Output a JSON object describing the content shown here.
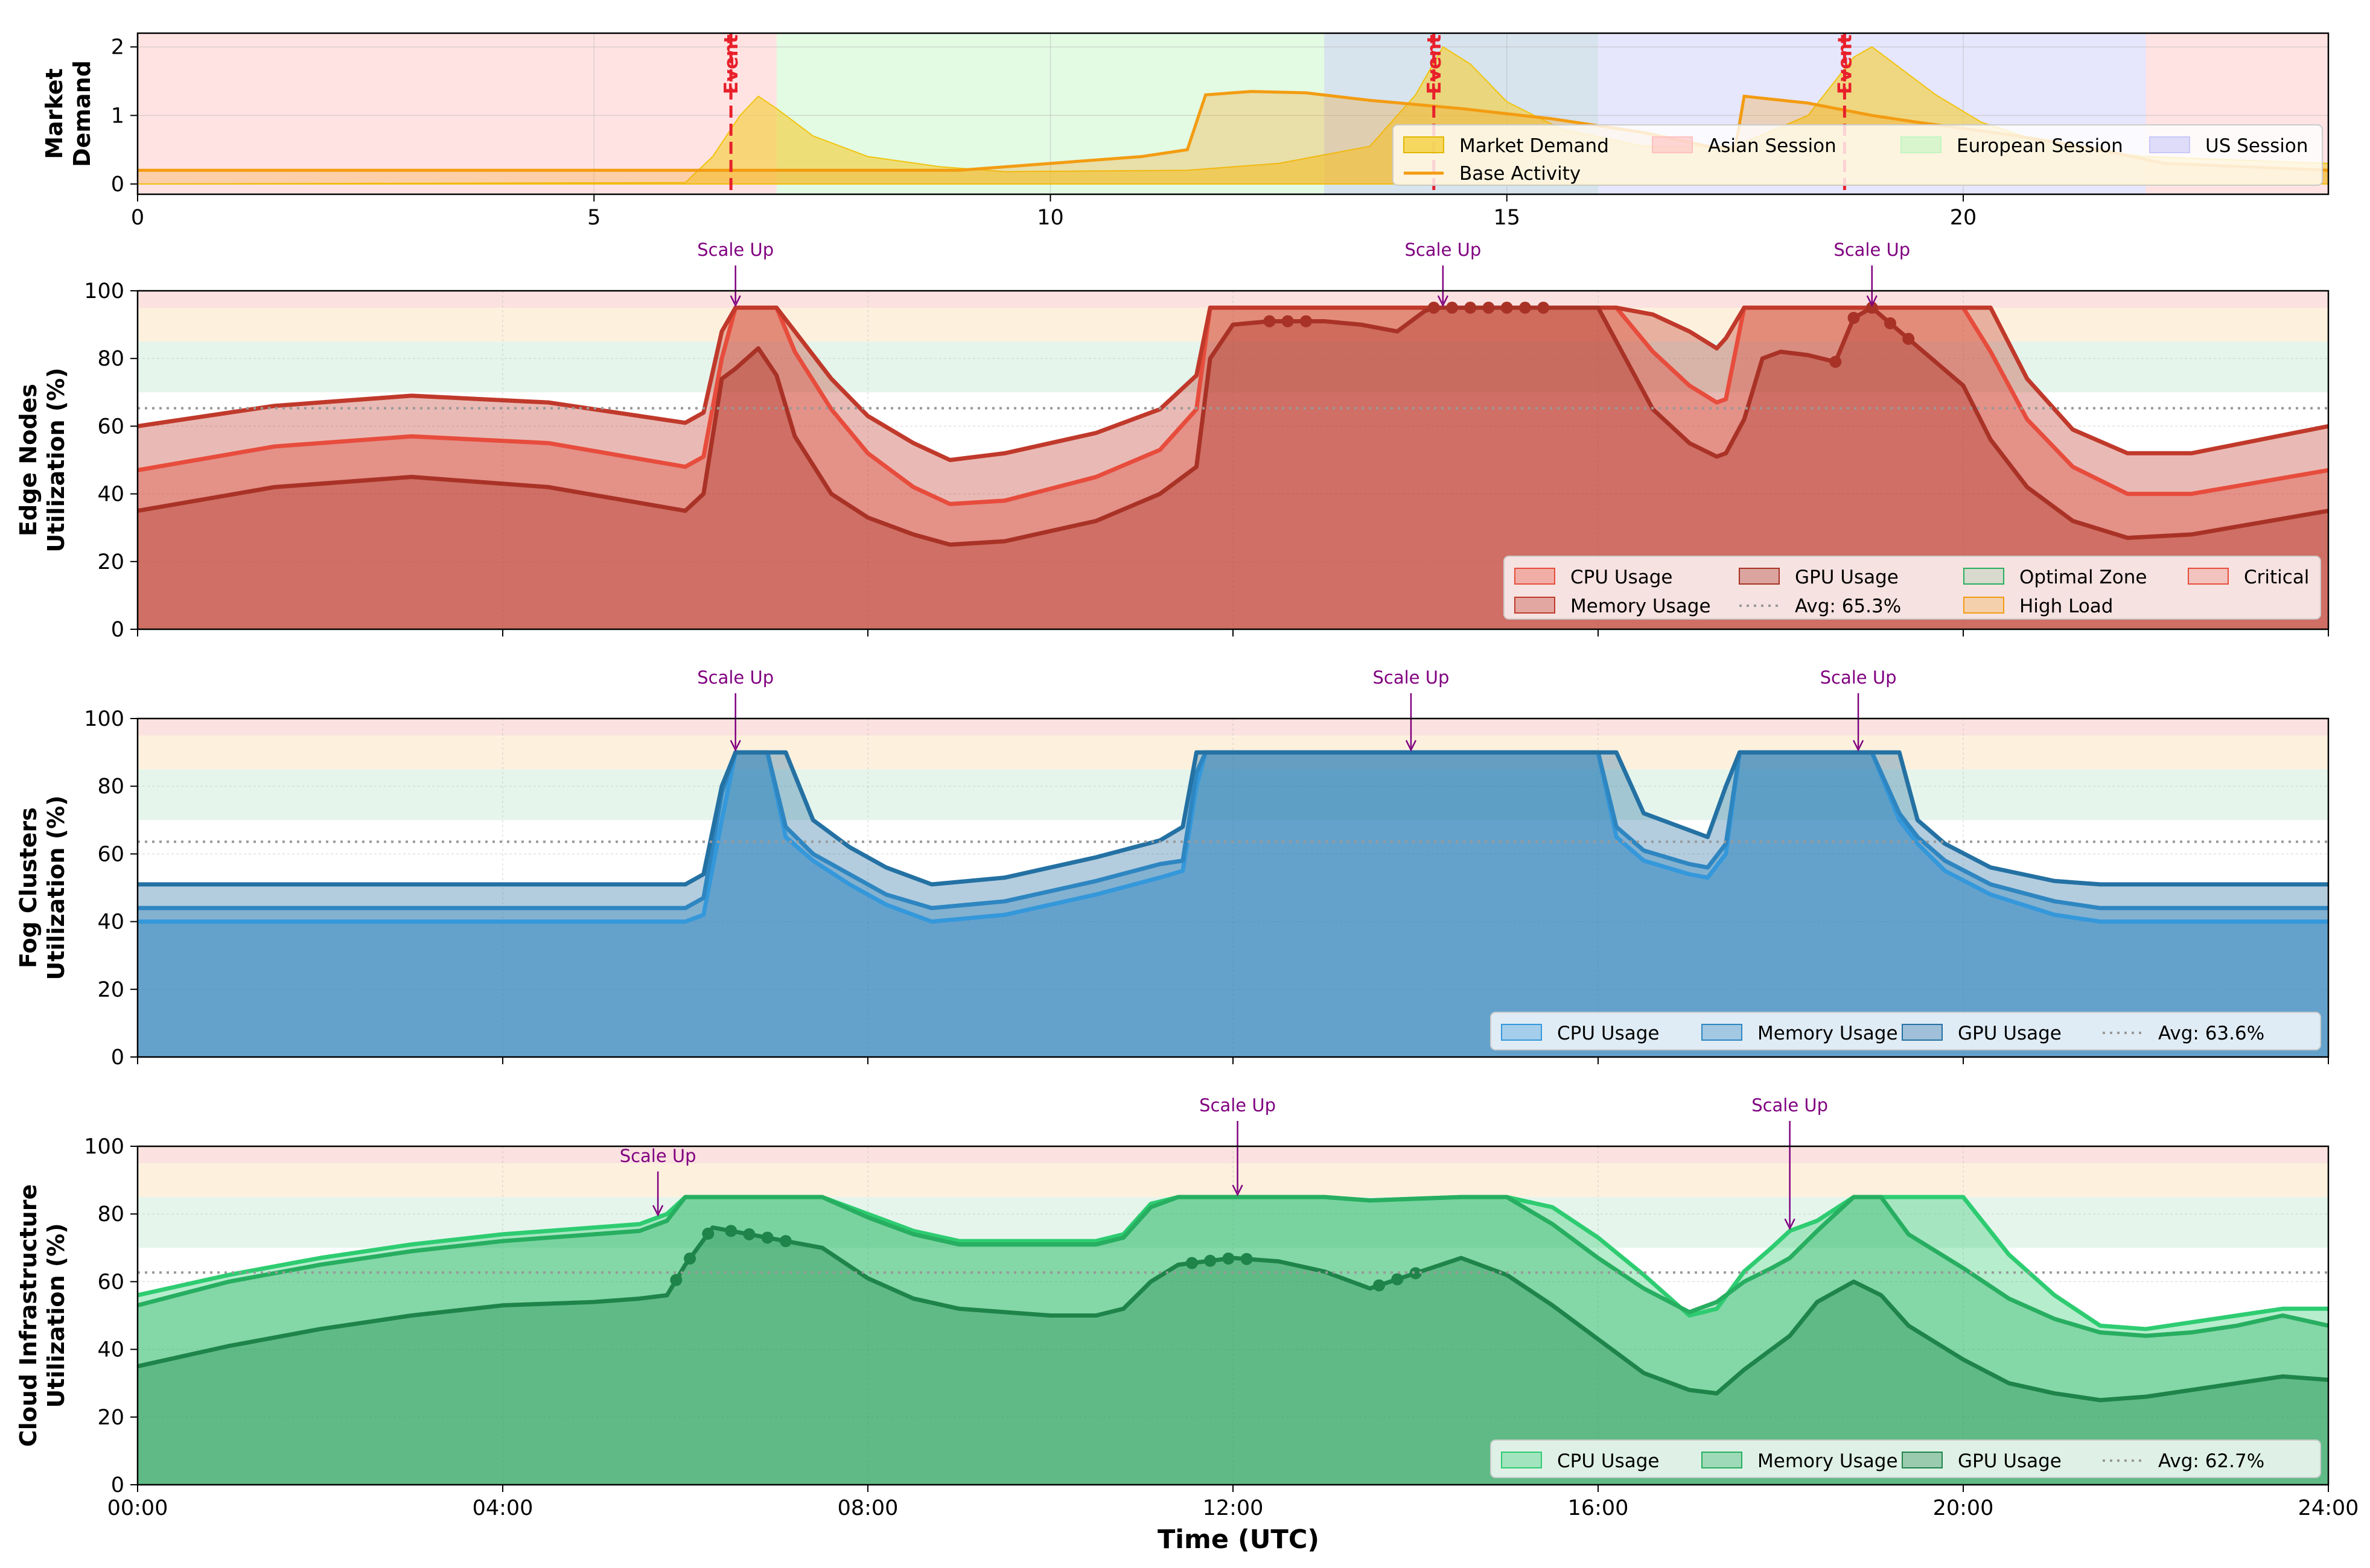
{
  "figure": {
    "xlabel": "Time (UTC)"
  },
  "chart_data": [
    {
      "type": "area",
      "id": "market",
      "ylabel": "Market\nDemand",
      "xlim": [
        0,
        24
      ],
      "ylim": [
        -0.15,
        2.2
      ],
      "xticks": [
        0,
        5,
        10,
        15,
        20
      ],
      "yticks": [
        0,
        1,
        2
      ],
      "sessions": [
        {
          "name": "Asian Session",
          "start": 0,
          "end": 7,
          "color": "#ffc0c0"
        },
        {
          "name": "Asian Session",
          "start": 22,
          "end": 24,
          "color": "#ffc0c0"
        },
        {
          "name": "European Session",
          "start": 7,
          "end": 16,
          "color": "#c2f5c2"
        },
        {
          "name": "US Session",
          "start": 13,
          "end": 22,
          "color": "#c8c8f8"
        }
      ],
      "events": [
        {
          "x": 6.5,
          "label": "Event"
        },
        {
          "x": 14.2,
          "label": "Event"
        },
        {
          "x": 18.7,
          "label": "Event"
        }
      ],
      "series": [
        {
          "name": "Market Demand",
          "x": [
            0,
            6,
            6.3,
            6.6,
            6.8,
            7.0,
            7.4,
            8.0,
            8.8,
            9.5,
            11.5,
            12.5,
            13.5,
            14.0,
            14.3,
            14.6,
            15.0,
            15.6,
            16.5,
            17.5,
            18.3,
            18.8,
            19.0,
            19.3,
            19.7,
            20.2,
            21.0,
            22.0,
            24.0
          ],
          "values": [
            0.0,
            0.02,
            0.4,
            1.0,
            1.28,
            1.1,
            0.7,
            0.4,
            0.25,
            0.18,
            0.2,
            0.3,
            0.55,
            1.3,
            2.0,
            1.75,
            1.2,
            0.8,
            0.55,
            0.55,
            1.0,
            1.85,
            2.0,
            1.7,
            1.3,
            0.9,
            0.55,
            0.4,
            0.3
          ]
        },
        {
          "name": "Base Activity",
          "x": [
            0,
            8.5,
            9,
            10,
            11,
            11.5,
            11.7,
            12.2,
            12.8,
            13.5,
            14.5,
            15.5,
            16.5,
            17.2,
            17.5,
            17.6,
            18.3,
            19.0,
            19.5,
            20.5,
            21.5,
            22.2,
            24
          ],
          "values": [
            0.2,
            0.2,
            0.2,
            0.3,
            0.4,
            0.5,
            1.3,
            1.35,
            1.33,
            1.22,
            1.1,
            0.95,
            0.75,
            0.55,
            0.5,
            1.28,
            1.18,
            1.0,
            0.9,
            0.72,
            0.5,
            0.3,
            0.2
          ]
        }
      ],
      "legend": [
        "Market Demand",
        "Asian Session",
        "European Session",
        "US Session",
        "Base Activity"
      ]
    },
    {
      "type": "area",
      "id": "edge",
      "ylabel": "Edge Nodes\nUtilization (%)",
      "ylim": [
        0,
        100
      ],
      "yticks": [
        0,
        20,
        40,
        60,
        80,
        100
      ],
      "avg": 65.3,
      "avg_label": "Avg: 65.3%",
      "scale_up_label": "Scale Up",
      "scale_up_x": [
        6.55,
        14.3,
        19.0
      ],
      "colors": {
        "cpu": "#e74c3c",
        "memory": "#c0392b",
        "gpu": "#a93226"
      },
      "x": [
        0,
        1.5,
        3,
        4.5,
        6,
        6.2,
        6.4,
        6.55,
        6.8,
        7.0,
        7.2,
        7.6,
        8.0,
        8.5,
        8.9,
        9.5,
        10.5,
        11.2,
        11.6,
        11.75,
        12.0,
        12.4,
        13.0,
        13.4,
        13.8,
        14.1,
        14.2,
        16.0,
        16.2,
        16.6,
        17.0,
        17.3,
        17.4,
        17.6,
        17.8,
        18.0,
        18.3,
        18.6,
        18.8,
        19.0,
        20.0,
        20.3,
        20.7,
        21.2,
        21.8,
        22.5,
        24
      ],
      "series": [
        {
          "name": "CPU Usage",
          "values": [
            47,
            54,
            57,
            55,
            48,
            51,
            80,
            95,
            95,
            95,
            82,
            65,
            52,
            42,
            37,
            38,
            45,
            53,
            65,
            95,
            95,
            95,
            95,
            95,
            95,
            95,
            95,
            95,
            95,
            82,
            72,
            67,
            68,
            95,
            95,
            95,
            95,
            95,
            95,
            95,
            95,
            82,
            62,
            48,
            40,
            40,
            47
          ]
        },
        {
          "name": "Memory Usage",
          "values": [
            60,
            66,
            69,
            67,
            61,
            64,
            88,
            95,
            95,
            95,
            88,
            74,
            63,
            55,
            50,
            52,
            58,
            65,
            75,
            95,
            95,
            95,
            95,
            95,
            95,
            95,
            95,
            95,
            95,
            93,
            88,
            83,
            86,
            95,
            95,
            95,
            95,
            95,
            95,
            95,
            95,
            95,
            74,
            59,
            52,
            52,
            60
          ]
        },
        {
          "name": "GPU Usage",
          "values": [
            35,
            42,
            45,
            42,
            35,
            40,
            74,
            77,
            83,
            75,
            57,
            40,
            33,
            28,
            25,
            26,
            32,
            40,
            48,
            80,
            90,
            91,
            91,
            90,
            88,
            94,
            95,
            95,
            85,
            65,
            55,
            51,
            52,
            62,
            80,
            82,
            81,
            79,
            92,
            95,
            72,
            56,
            42,
            32,
            27,
            28,
            35
          ]
        }
      ],
      "markers": [
        {
          "series": "GPU Usage",
          "x": [
            12.4,
            12.6,
            12.8
          ]
        },
        {
          "series": "GPU Usage",
          "x": [
            14.2,
            14.4,
            14.6,
            14.8,
            15.0,
            15.2,
            15.4
          ]
        },
        {
          "series": "GPU Usage",
          "x": [
            18.6,
            18.8,
            19.0,
            19.2,
            19.4
          ]
        }
      ],
      "legend": [
        "CPU Usage",
        "GPU Usage",
        "Optimal Zone",
        "Critical",
        "Memory Usage",
        "Avg: 65.3%",
        "High Load"
      ]
    },
    {
      "type": "area",
      "id": "fog",
      "ylabel": "Fog Clusters\nUtilization (%)",
      "ylim": [
        0,
        100
      ],
      "yticks": [
        0,
        20,
        40,
        60,
        80,
        100
      ],
      "avg": 63.6,
      "avg_label": "Avg: 63.6%",
      "scale_up_label": "Scale Up",
      "scale_up_x": [
        6.55,
        13.95,
        18.85
      ],
      "colors": {
        "cpu": "#3498db",
        "memory": "#2e86c1",
        "gpu": "#2471a3"
      },
      "x": [
        0,
        6.0,
        6.2,
        6.4,
        6.55,
        6.9,
        7.1,
        7.4,
        7.8,
        8.2,
        8.7,
        9.5,
        10.5,
        11.2,
        11.45,
        11.6,
        11.7,
        16.0,
        16.2,
        16.5,
        17.0,
        17.2,
        17.4,
        17.55,
        19.0,
        19.3,
        19.5,
        19.8,
        20.3,
        21.0,
        21.5,
        24
      ],
      "series": [
        {
          "name": "CPU Usage",
          "values": [
            40,
            40,
            42,
            70,
            90,
            90,
            65,
            58,
            51,
            45,
            40,
            42,
            48,
            53,
            55,
            80,
            90,
            90,
            65,
            58,
            54,
            53,
            60,
            90,
            90,
            70,
            63,
            55,
            48,
            42,
            40,
            40
          ]
        },
        {
          "name": "Memory Usage",
          "values": [
            44,
            44,
            47,
            78,
            90,
            90,
            68,
            60,
            54,
            48,
            44,
            46,
            52,
            57,
            58,
            84,
            90,
            90,
            68,
            61,
            57,
            56,
            63,
            90,
            90,
            72,
            65,
            58,
            51,
            46,
            44,
            44
          ]
        },
        {
          "name": "GPU Usage",
          "values": [
            51,
            51,
            54,
            80,
            90,
            90,
            90,
            70,
            62,
            56,
            51,
            53,
            59,
            64,
            68,
            90,
            90,
            90,
            90,
            72,
            67,
            65,
            80,
            90,
            90,
            90,
            70,
            63,
            56,
            52,
            51,
            51
          ]
        }
      ],
      "legend": [
        "CPU Usage",
        "Memory Usage",
        "GPU Usage",
        "Avg: 63.6%"
      ]
    },
    {
      "type": "area",
      "id": "cloud",
      "ylabel": "Cloud Infrastructure\nUtilization (%)",
      "ylim": [
        0,
        100
      ],
      "yticks": [
        0,
        20,
        40,
        60,
        80,
        100
      ],
      "xticks": [
        "00:00",
        "04:00",
        "08:00",
        "12:00",
        "16:00",
        "20:00",
        "24:00"
      ],
      "avg": 62.7,
      "avg_label": "Avg: 62.7%",
      "scale_up_label": "Scale Up",
      "scale_up_x": [
        5.7,
        12.05,
        18.1
      ],
      "colors": {
        "cpu": "#2ecc71",
        "memory": "#27ae60",
        "gpu": "#1e8449"
      },
      "x": [
        0,
        1,
        2,
        3,
        4,
        5,
        5.5,
        5.8,
        6.0,
        6.3,
        7.5,
        8.0,
        8.5,
        9.0,
        10.0,
        10.5,
        10.8,
        11.1,
        11.4,
        12.0,
        12.5,
        13.0,
        13.5,
        14.5,
        15.0,
        15.5,
        16.0,
        16.5,
        17.0,
        17.3,
        17.6,
        17.9,
        18.1,
        18.4,
        18.8,
        19.1,
        19.4,
        20.0,
        20.5,
        21.0,
        21.5,
        22.0,
        22.5,
        23.0,
        23.5,
        24
      ],
      "series": [
        {
          "name": "CPU Usage",
          "values": [
            56,
            62,
            67,
            71,
            74,
            76,
            77,
            80,
            85,
            85,
            85,
            80,
            75,
            72,
            72,
            72,
            74,
            83,
            85,
            85,
            85,
            85,
            84,
            85,
            85,
            82,
            73,
            62,
            50,
            52,
            63,
            70,
            75,
            78,
            85,
            85,
            85,
            85,
            68,
            56,
            47,
            46,
            48,
            50,
            52,
            52
          ]
        },
        {
          "name": "Memory Usage",
          "values": [
            53,
            60,
            65,
            69,
            72,
            74,
            75,
            78,
            85,
            85,
            85,
            79,
            74,
            71,
            71,
            71,
            73,
            82,
            85,
            85,
            85,
            85,
            84,
            85,
            85,
            77,
            67,
            58,
            51,
            54,
            60,
            64,
            67,
            75,
            85,
            85,
            74,
            64,
            55,
            49,
            45,
            44,
            45,
            47,
            50,
            47
          ]
        },
        {
          "name": "GPU Usage",
          "values": [
            35,
            41,
            46,
            50,
            53,
            54,
            55,
            56,
            65,
            76,
            70,
            61,
            55,
            52,
            50,
            50,
            52,
            60,
            65,
            67,
            66,
            63,
            58,
            67,
            62,
            53,
            43,
            33,
            28,
            27,
            34,
            40,
            44,
            54,
            60,
            56,
            47,
            37,
            30,
            27,
            25,
            26,
            28,
            30,
            32,
            31
          ]
        }
      ],
      "markers": [
        {
          "series": "GPU Usage",
          "x": [
            5.9,
            6.05,
            6.25,
            6.5,
            6.7,
            6.9,
            7.1
          ]
        },
        {
          "series": "GPU Usage",
          "x": [
            11.55,
            11.75,
            11.95,
            12.15
          ]
        },
        {
          "series": "GPU Usage",
          "x": [
            13.6,
            13.8,
            14.0
          ]
        }
      ],
      "legend": [
        "CPU Usage",
        "Memory Usage",
        "GPU Usage",
        "Avg: 62.7%"
      ]
    }
  ]
}
